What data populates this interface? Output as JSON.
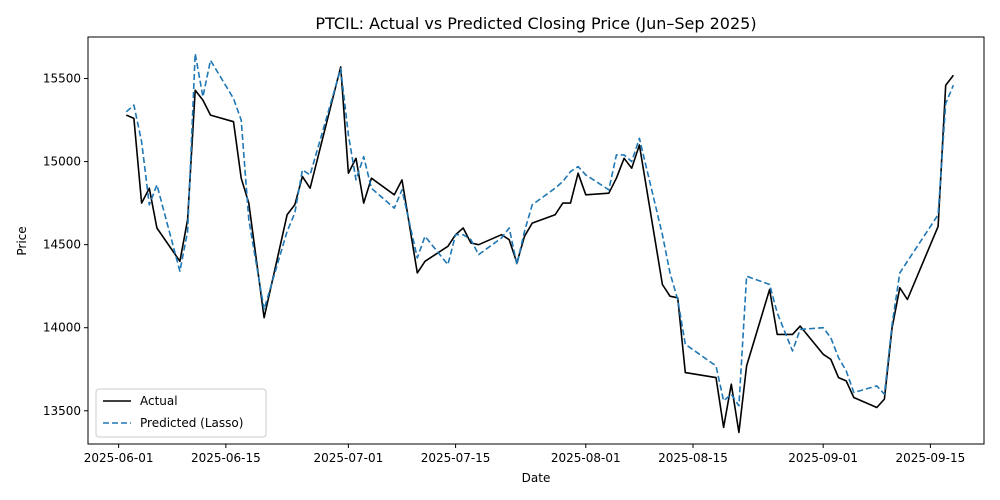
{
  "chart_data": {
    "type": "line",
    "title": "PTCIL: Actual vs Predicted Closing Price (Jun–Sep 2025)",
    "xlabel": "Date",
    "ylabel": "Price",
    "xlim": [
      "2025-05-28",
      "2025-09-22"
    ],
    "ylim": [
      13300,
      15750
    ],
    "x_ticks": [
      "2025-06-01",
      "2025-06-15",
      "2025-07-01",
      "2025-07-15",
      "2025-08-01",
      "2025-08-15",
      "2025-09-01",
      "2025-09-15"
    ],
    "y_ticks": [
      13500,
      14000,
      14500,
      15000,
      15500
    ],
    "grid": false,
    "legend": {
      "placement": "lower-left"
    },
    "series": [
      {
        "name": "Actual",
        "color": "#000000",
        "style": "solid",
        "points": [
          [
            "2025-06-02",
            15280
          ],
          [
            "2025-06-03",
            15260
          ],
          [
            "2025-06-04",
            14750
          ],
          [
            "2025-06-05",
            14840
          ],
          [
            "2025-06-06",
            14600
          ],
          [
            "2025-06-09",
            14400
          ],
          [
            "2025-06-10",
            14650
          ],
          [
            "2025-06-11",
            15430
          ],
          [
            "2025-06-12",
            15370
          ],
          [
            "2025-06-13",
            15280
          ],
          [
            "2025-06-16",
            15240
          ],
          [
            "2025-06-17",
            14900
          ],
          [
            "2025-06-18",
            14750
          ],
          [
            "2025-06-20",
            14060
          ],
          [
            "2025-06-23",
            14680
          ],
          [
            "2025-06-24",
            14740
          ],
          [
            "2025-06-25",
            14910
          ],
          [
            "2025-06-26",
            14840
          ],
          [
            "2025-06-30",
            15570
          ],
          [
            "2025-07-01",
            14930
          ],
          [
            "2025-07-02",
            15020
          ],
          [
            "2025-07-03",
            14750
          ],
          [
            "2025-07-04",
            14900
          ],
          [
            "2025-07-07",
            14800
          ],
          [
            "2025-07-08",
            14890
          ],
          [
            "2025-07-10",
            14330
          ],
          [
            "2025-07-11",
            14400
          ],
          [
            "2025-07-14",
            14490
          ],
          [
            "2025-07-15",
            14560
          ],
          [
            "2025-07-16",
            14600
          ],
          [
            "2025-07-17",
            14510
          ],
          [
            "2025-07-18",
            14500
          ],
          [
            "2025-07-21",
            14560
          ],
          [
            "2025-07-22",
            14530
          ],
          [
            "2025-07-23",
            14390
          ],
          [
            "2025-07-24",
            14550
          ],
          [
            "2025-07-25",
            14630
          ],
          [
            "2025-07-28",
            14680
          ],
          [
            "2025-07-29",
            14750
          ],
          [
            "2025-07-30",
            14750
          ],
          [
            "2025-07-31",
            14930
          ],
          [
            "2025-08-01",
            14800
          ],
          [
            "2025-08-04",
            14810
          ],
          [
            "2025-08-05",
            14900
          ],
          [
            "2025-08-06",
            15020
          ],
          [
            "2025-08-07",
            14960
          ],
          [
            "2025-08-08",
            15100
          ],
          [
            "2025-08-11",
            14260
          ],
          [
            "2025-08-12",
            14190
          ],
          [
            "2025-08-13",
            14180
          ],
          [
            "2025-08-14",
            13730
          ],
          [
            "2025-08-18",
            13700
          ],
          [
            "2025-08-19",
            13400
          ],
          [
            "2025-08-20",
            13660
          ],
          [
            "2025-08-21",
            13370
          ],
          [
            "2025-08-22",
            13770
          ],
          [
            "2025-08-25",
            14230
          ],
          [
            "2025-08-26",
            13960
          ],
          [
            "2025-08-28",
            13960
          ],
          [
            "2025-08-29",
            14010
          ],
          [
            "2025-09-01",
            13840
          ],
          [
            "2025-09-02",
            13810
          ],
          [
            "2025-09-03",
            13700
          ],
          [
            "2025-09-04",
            13680
          ],
          [
            "2025-09-05",
            13580
          ],
          [
            "2025-09-08",
            13520
          ],
          [
            "2025-09-09",
            13570
          ],
          [
            "2025-09-10",
            14000
          ],
          [
            "2025-09-11",
            14240
          ],
          [
            "2025-09-12",
            14170
          ],
          [
            "2025-09-16",
            14610
          ],
          [
            "2025-09-17",
            15460
          ],
          [
            "2025-09-18",
            15520
          ]
        ]
      },
      {
        "name": "Predicted (Lasso)",
        "color": "#1f77b4",
        "style": "dashed",
        "points": [
          [
            "2025-06-02",
            15300
          ],
          [
            "2025-06-03",
            15340
          ],
          [
            "2025-06-04",
            15120
          ],
          [
            "2025-06-05",
            14740
          ],
          [
            "2025-06-06",
            14860
          ],
          [
            "2025-06-09",
            14340
          ],
          [
            "2025-06-10",
            14580
          ],
          [
            "2025-06-11",
            15650
          ],
          [
            "2025-06-12",
            15390
          ],
          [
            "2025-06-13",
            15610
          ],
          [
            "2025-06-16",
            15380
          ],
          [
            "2025-06-17",
            15250
          ],
          [
            "2025-06-18",
            14650
          ],
          [
            "2025-06-20",
            14110
          ],
          [
            "2025-06-23",
            14580
          ],
          [
            "2025-06-24",
            14690
          ],
          [
            "2025-06-25",
            14950
          ],
          [
            "2025-06-26",
            14920
          ],
          [
            "2025-06-30",
            15560
          ],
          [
            "2025-07-01",
            15160
          ],
          [
            "2025-07-02",
            14890
          ],
          [
            "2025-07-03",
            15030
          ],
          [
            "2025-07-04",
            14840
          ],
          [
            "2025-07-07",
            14720
          ],
          [
            "2025-07-08",
            14830
          ],
          [
            "2025-07-10",
            14420
          ],
          [
            "2025-07-11",
            14550
          ],
          [
            "2025-07-14",
            14380
          ],
          [
            "2025-07-15",
            14560
          ],
          [
            "2025-07-16",
            14560
          ],
          [
            "2025-07-17",
            14530
          ],
          [
            "2025-07-18",
            14440
          ],
          [
            "2025-07-21",
            14540
          ],
          [
            "2025-07-22",
            14600
          ],
          [
            "2025-07-23",
            14380
          ],
          [
            "2025-07-24",
            14580
          ],
          [
            "2025-07-25",
            14740
          ],
          [
            "2025-07-28",
            14840
          ],
          [
            "2025-07-29",
            14880
          ],
          [
            "2025-07-30",
            14940
          ],
          [
            "2025-07-31",
            14970
          ],
          [
            "2025-08-01",
            14920
          ],
          [
            "2025-08-04",
            14830
          ],
          [
            "2025-08-05",
            15040
          ],
          [
            "2025-08-06",
            15040
          ],
          [
            "2025-08-07",
            15000
          ],
          [
            "2025-08-08",
            15140
          ],
          [
            "2025-08-11",
            14560
          ],
          [
            "2025-08-12",
            14330
          ],
          [
            "2025-08-13",
            14170
          ],
          [
            "2025-08-14",
            13900
          ],
          [
            "2025-08-18",
            13770
          ],
          [
            "2025-08-19",
            13560
          ],
          [
            "2025-08-20",
            13600
          ],
          [
            "2025-08-21",
            13530
          ],
          [
            "2025-08-22",
            14310
          ],
          [
            "2025-08-25",
            14260
          ],
          [
            "2025-08-26",
            14090
          ],
          [
            "2025-08-28",
            13860
          ],
          [
            "2025-08-29",
            13990
          ],
          [
            "2025-09-01",
            14000
          ],
          [
            "2025-09-02",
            13940
          ],
          [
            "2025-09-03",
            13820
          ],
          [
            "2025-09-04",
            13740
          ],
          [
            "2025-09-05",
            13610
          ],
          [
            "2025-09-08",
            13650
          ],
          [
            "2025-09-09",
            13600
          ],
          [
            "2025-09-10",
            14020
          ],
          [
            "2025-09-11",
            14330
          ],
          [
            "2025-09-12",
            14400
          ],
          [
            "2025-09-16",
            14680
          ],
          [
            "2025-09-17",
            15350
          ],
          [
            "2025-09-18",
            15460
          ]
        ]
      }
    ]
  }
}
